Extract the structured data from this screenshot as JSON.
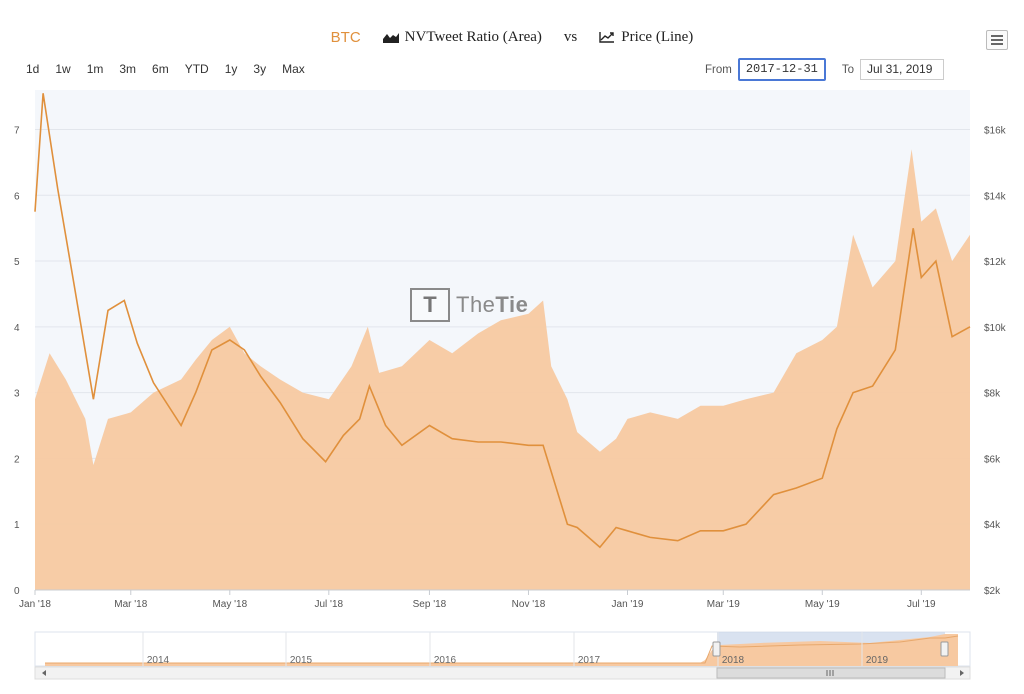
{
  "header": {
    "coin": "BTC",
    "area_label": "NVTweet Ratio (Area)",
    "vs": "vs",
    "line_label": "Price (Line)",
    "area_icon": "area-chart-icon",
    "line_icon": "line-chart-icon"
  },
  "range_buttons": [
    "1d",
    "1w",
    "1m",
    "3m",
    "6m",
    "YTD",
    "1y",
    "3y",
    "Max"
  ],
  "date_range": {
    "from_label": "From",
    "from_value": "2017-12-31",
    "to_label": "To",
    "to_value": "Jul 31, 2019"
  },
  "watermark": {
    "part1": "The",
    "part2": "Tie"
  },
  "colors": {
    "area": "#f7c9a1",
    "line": "#e0903c",
    "plot_bg": "#f4f7fb",
    "navigator": "#c9d6ea"
  },
  "chart_data": {
    "type": "area",
    "x_range": [
      "2018-01-01",
      "2019-07-31"
    ],
    "x_ticks": [
      "Jan '18",
      "Mar '18",
      "May '18",
      "Jul '18",
      "Sep '18",
      "Nov '18",
      "Jan '19",
      "Mar '19",
      "May '19",
      "Jul '19"
    ],
    "y_left": {
      "ticks": [
        "0",
        "1",
        "2",
        "3",
        "4",
        "5",
        "6",
        "7"
      ],
      "range": [
        0,
        7.6
      ]
    },
    "y_right": {
      "ticks": [
        "$2k",
        "$4k",
        "$6k",
        "$8k",
        "$10k",
        "$12k",
        "$14k",
        "$16k"
      ],
      "range": [
        2000,
        17200
      ]
    },
    "grid": true,
    "series": [
      {
        "type": "area",
        "axis": "left",
        "x": [
          "2018-01-01",
          "2018-01-10",
          "2018-01-20",
          "2018-02-01",
          "2018-02-06",
          "2018-02-15",
          "2018-03-01",
          "2018-03-15",
          "2018-04-01",
          "2018-04-10",
          "2018-04-20",
          "2018-05-01",
          "2018-05-10",
          "2018-05-20",
          "2018-06-01",
          "2018-06-15",
          "2018-07-01",
          "2018-07-15",
          "2018-07-25",
          "2018-08-01",
          "2018-08-15",
          "2018-09-01",
          "2018-09-15",
          "2018-10-01",
          "2018-10-15",
          "2018-11-01",
          "2018-11-10",
          "2018-11-15",
          "2018-11-25",
          "2018-12-01",
          "2018-12-15",
          "2018-12-25",
          "2019-01-01",
          "2019-01-15",
          "2019-02-01",
          "2019-02-15",
          "2019-03-01",
          "2019-03-15",
          "2019-04-01",
          "2019-04-15",
          "2019-05-01",
          "2019-05-10",
          "2019-05-20",
          "2019-06-01",
          "2019-06-15",
          "2019-06-25",
          "2019-07-01",
          "2019-07-10",
          "2019-07-20",
          "2019-07-31"
        ],
        "values": [
          2.9,
          3.6,
          3.2,
          2.6,
          1.9,
          2.6,
          2.7,
          3.0,
          3.2,
          3.5,
          3.8,
          4.0,
          3.6,
          3.4,
          3.2,
          3.0,
          2.9,
          3.4,
          4.0,
          3.3,
          3.4,
          3.8,
          3.6,
          3.9,
          4.1,
          4.2,
          4.4,
          3.4,
          2.9,
          2.4,
          2.1,
          2.3,
          2.6,
          2.7,
          2.6,
          2.8,
          2.8,
          2.9,
          3.0,
          3.6,
          3.8,
          4.0,
          5.4,
          4.6,
          5.0,
          6.7,
          5.6,
          5.8,
          5.0,
          5.4
        ]
      },
      {
        "type": "line",
        "axis": "right",
        "x": [
          "2018-01-01",
          "2018-01-06",
          "2018-01-15",
          "2018-01-25",
          "2018-02-06",
          "2018-02-15",
          "2018-02-25",
          "2018-03-05",
          "2018-03-15",
          "2018-04-01",
          "2018-04-10",
          "2018-04-20",
          "2018-05-01",
          "2018-05-10",
          "2018-05-20",
          "2018-06-01",
          "2018-06-15",
          "2018-06-29",
          "2018-07-10",
          "2018-07-20",
          "2018-07-26",
          "2018-08-05",
          "2018-08-15",
          "2018-09-01",
          "2018-09-15",
          "2018-10-01",
          "2018-10-15",
          "2018-11-01",
          "2018-11-10",
          "2018-11-15",
          "2018-11-25",
          "2018-12-01",
          "2018-12-15",
          "2018-12-25",
          "2019-01-01",
          "2019-01-15",
          "2019-02-01",
          "2019-02-15",
          "2019-03-01",
          "2019-03-15",
          "2019-04-01",
          "2019-04-15",
          "2019-05-01",
          "2019-05-10",
          "2019-05-20",
          "2019-06-01",
          "2019-06-15",
          "2019-06-26",
          "2019-07-01",
          "2019-07-10",
          "2019-07-20",
          "2019-07-31"
        ],
        "values": [
          13500,
          17100,
          14200,
          11300,
          7800,
          10500,
          10800,
          9500,
          8300,
          7000,
          8000,
          9300,
          9600,
          9300,
          8500,
          7700,
          6600,
          5900,
          6700,
          7200,
          8200,
          7000,
          6400,
          7000,
          6600,
          6500,
          6500,
          6400,
          6400,
          5600,
          4000,
          3900,
          3300,
          3900,
          3800,
          3600,
          3500,
          3800,
          3800,
          4000,
          4900,
          5100,
          5400,
          6900,
          8000,
          8200,
          9300,
          13000,
          11500,
          12000,
          9700,
          10000
        ]
      }
    ],
    "navigator": {
      "labels": [
        "2014",
        "2015",
        "2016",
        "2017",
        "2018",
        "2019"
      ]
    }
  }
}
